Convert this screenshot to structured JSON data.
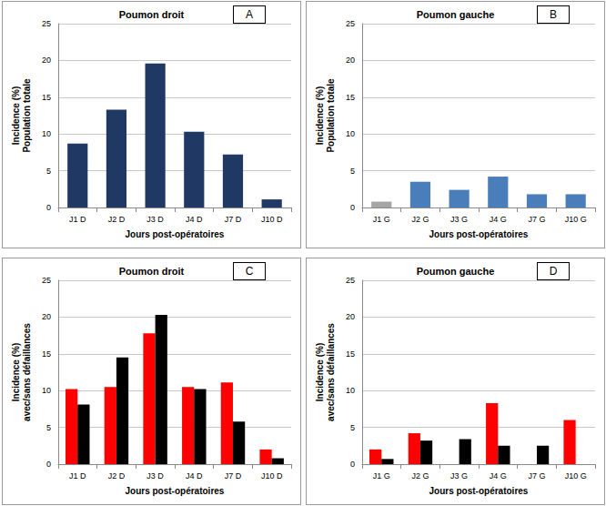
{
  "chart_data": [
    {
      "type": "bar",
      "label": "A",
      "title": "Poumon droit",
      "x_label": "Jours post-opératoires",
      "y_label": "Incidence (%)\nPopulation totale",
      "categories": [
        "J1 D",
        "J2 D",
        "J3 D",
        "J4 D",
        "J7 D",
        "J10 D"
      ],
      "values": [
        8.7,
        13.3,
        19.6,
        10.3,
        7.2,
        1.1
      ],
      "color": "#1f3864",
      "ylim": [
        0,
        25
      ],
      "yticks": [
        0,
        5,
        10,
        15,
        20,
        25
      ],
      "grid": true
    },
    {
      "type": "bar",
      "label": "B",
      "title": "Poumon gauche",
      "x_label": "Jours post-opératoires",
      "y_label": "Incidence (%)\nPopulation totale",
      "categories": [
        "J1 G",
        "J2 G",
        "J3 G",
        "J4 G",
        "J7 G",
        "J10 G"
      ],
      "values": [
        0.8,
        3.5,
        2.4,
        4.2,
        1.8,
        1.8
      ],
      "colors": [
        "#a6a6a6",
        "#4a7ebb",
        "#4a7ebb",
        "#4a7ebb",
        "#4a7ebb",
        "#4a7ebb"
      ],
      "ylim": [
        0,
        25
      ],
      "yticks": [
        0,
        5,
        10,
        15,
        20,
        25
      ],
      "grid": true
    },
    {
      "type": "bar",
      "label": "C",
      "title": "Poumon droit",
      "x_label": "Jours post-opératoires",
      "y_label": "Incidence (%)\navec/sans défaillances",
      "categories": [
        "J1 D",
        "J2 D",
        "J3 D",
        "J4 D",
        "J7 D",
        "J10 D"
      ],
      "series": [
        {
          "color": "#ff0000",
          "values": [
            10.2,
            10.5,
            17.8,
            10.5,
            11.1,
            2.0
          ]
        },
        {
          "color": "#000000",
          "values": [
            8.1,
            14.5,
            20.3,
            10.2,
            5.8,
            0.8
          ]
        }
      ],
      "ylim": [
        0,
        25
      ],
      "yticks": [
        0,
        5,
        10,
        15,
        20,
        25
      ],
      "grid": true
    },
    {
      "type": "bar",
      "label": "D",
      "title": "Poumon gauche",
      "x_label": "Jours post-opératoires",
      "y_label": "Incidence (%)\navec/sans défaillances",
      "categories": [
        "J1 G",
        "J2 G",
        "J3 G",
        "J4 G",
        "J7 G",
        "J10 G"
      ],
      "series": [
        {
          "color": "#ff0000",
          "values": [
            2.0,
            4.2,
            0,
            8.3,
            0,
            6.0
          ]
        },
        {
          "color": "#000000",
          "values": [
            0.7,
            3.2,
            3.4,
            2.5,
            2.5,
            0
          ]
        }
      ],
      "ylim": [
        0,
        25
      ],
      "yticks": [
        0,
        5,
        10,
        15,
        20,
        25
      ],
      "grid": true
    }
  ]
}
